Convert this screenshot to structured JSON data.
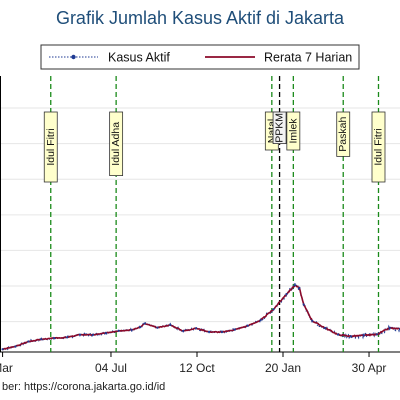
{
  "chart_data": {
    "type": "line",
    "title": "Grafik Jumlah Kasus Aktif di Jakarta",
    "legend": {
      "placement": "top",
      "entries": [
        {
          "label": "Kasus Aktif",
          "color": "#1f3a93",
          "marker": "dot"
        },
        {
          "label": "Rerata 7 Harian",
          "color": "#8b0a2a",
          "marker": "line"
        }
      ]
    },
    "x_tick_labels": [
      "Mar",
      "04 Jul",
      "12 Oct",
      "20 Jan",
      "30 Apr"
    ],
    "x_tick_days": [
      0,
      126,
      226,
      326,
      426
    ],
    "x_range_days": [
      -3,
      462
    ],
    "y_range_index": [
      0,
      100
    ],
    "gridlines": [
      11,
      23.9,
      36.8,
      49.7,
      62.6,
      75.5,
      88.4
    ],
    "events": [
      {
        "label": "Idul Fitri",
        "day": 56,
        "style": "dashed-green"
      },
      {
        "label": "Idul Adha",
        "day": 132,
        "style": "dashed-green"
      },
      {
        "label": "Natal",
        "day": 313,
        "style": "dashed-green"
      },
      {
        "label": "PPKM",
        "day": 322,
        "style": "dashed-black"
      },
      {
        "label": "Imlek",
        "day": 338,
        "style": "dashed-green"
      },
      {
        "label": "Paskah",
        "day": 396,
        "style": "dashed-green"
      },
      {
        "label": "Idul Fitri",
        "day": 437,
        "style": "dashed-green"
      }
    ],
    "series": [
      {
        "name": "Kasus Aktif",
        "color": "#1f3a93",
        "values": [
          [
            0,
            1
          ],
          [
            15,
            2
          ],
          [
            30,
            3.8
          ],
          [
            45,
            4.6
          ],
          [
            60,
            5
          ],
          [
            75,
            5.3
          ],
          [
            90,
            6.3
          ],
          [
            105,
            6.2
          ],
          [
            120,
            6.9
          ],
          [
            135,
            7.7
          ],
          [
            150,
            8
          ],
          [
            160,
            9
          ],
          [
            165,
            10.3
          ],
          [
            180,
            8.8
          ],
          [
            195,
            9.8
          ],
          [
            210,
            7.6
          ],
          [
            225,
            8.6
          ],
          [
            240,
            7.3
          ],
          [
            255,
            7.2
          ],
          [
            270,
            8.1
          ],
          [
            285,
            9.5
          ],
          [
            300,
            11.5
          ],
          [
            315,
            15.5
          ],
          [
            330,
            21
          ],
          [
            340,
            24.2
          ],
          [
            345,
            23.2
          ],
          [
            350,
            17.2
          ],
          [
            360,
            11.3
          ],
          [
            375,
            8.7
          ],
          [
            390,
            6.3
          ],
          [
            405,
            5.7
          ],
          [
            420,
            6
          ],
          [
            435,
            6.4
          ],
          [
            450,
            8.7
          ],
          [
            462,
            8.3
          ]
        ]
      },
      {
        "name": "Rerata 7 Harian",
        "color": "#8b0a2a",
        "values": [
          [
            0,
            1
          ],
          [
            15,
            2
          ],
          [
            30,
            3.8
          ],
          [
            45,
            4.6
          ],
          [
            60,
            5
          ],
          [
            75,
            5.3
          ],
          [
            90,
            6.3
          ],
          [
            105,
            6.2
          ],
          [
            120,
            6.9
          ],
          [
            135,
            7.7
          ],
          [
            150,
            8
          ],
          [
            160,
            9
          ],
          [
            165,
            10.3
          ],
          [
            180,
            8.8
          ],
          [
            195,
            9.8
          ],
          [
            210,
            7.6
          ],
          [
            225,
            8.6
          ],
          [
            240,
            7.3
          ],
          [
            255,
            7.2
          ],
          [
            270,
            8.1
          ],
          [
            285,
            9.5
          ],
          [
            300,
            11.5
          ],
          [
            315,
            15.5
          ],
          [
            330,
            21
          ],
          [
            340,
            24.2
          ],
          [
            345,
            23.2
          ],
          [
            350,
            17.2
          ],
          [
            360,
            11.3
          ],
          [
            375,
            8.7
          ],
          [
            390,
            6.3
          ],
          [
            405,
            5.7
          ],
          [
            420,
            6
          ],
          [
            435,
            6.4
          ],
          [
            450,
            8.7
          ],
          [
            462,
            8.3
          ]
        ]
      }
    ]
  },
  "source_note": "ber: https://corona.jakarta.go.id/id",
  "colors": {
    "title": "#1f4e79",
    "event_line": "#1a8a1a",
    "ppkm_line": "#000000",
    "gridline": "#e6e6e6",
    "label_box": "#ffffcc"
  }
}
